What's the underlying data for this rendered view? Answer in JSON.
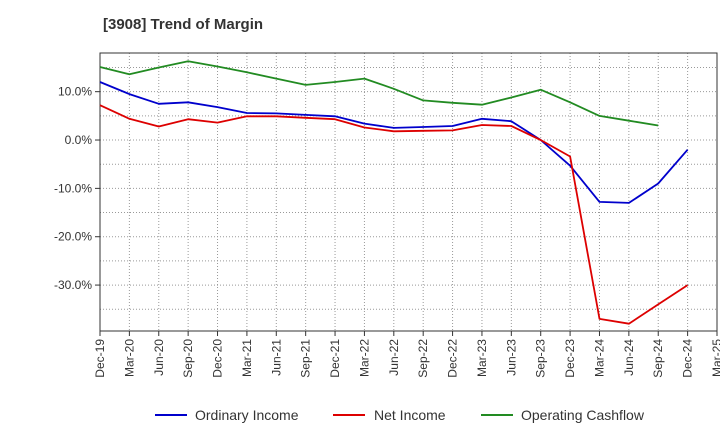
{
  "chart_data": {
    "type": "line",
    "title": "[3908]  Trend of Margin",
    "x": [
      "Dec-19",
      "Mar-20",
      "Jun-20",
      "Sep-20",
      "Dec-20",
      "Mar-21",
      "Jun-21",
      "Sep-21",
      "Dec-21",
      "Mar-22",
      "Jun-22",
      "Sep-22",
      "Dec-22",
      "Mar-23",
      "Jun-23",
      "Sep-23",
      "Dec-23",
      "Mar-24",
      "Jun-24",
      "Sep-24",
      "Dec-24",
      "Mar-25"
    ],
    "y_ticks": [
      "10.0%",
      "0.0%",
      "-10.0%",
      "-20.0%",
      "-30.0%"
    ],
    "y_tick_values": [
      10,
      0,
      -10,
      -20,
      -30
    ],
    "ylim": [
      -39.5,
      18
    ],
    "grid": true,
    "legend_position": "bottom",
    "series": [
      {
        "name": "Ordinary Income",
        "color": "#0000cc",
        "values": [
          12.0,
          9.5,
          7.5,
          7.8,
          6.8,
          5.6,
          5.5,
          5.2,
          4.9,
          3.4,
          2.5,
          2.7,
          2.9,
          4.4,
          3.9,
          0.0,
          -5.3,
          -12.8,
          -13.0,
          -9.0,
          -2.0,
          null
        ]
      },
      {
        "name": "Net Income",
        "color": "#dd0000",
        "values": [
          7.2,
          4.4,
          2.8,
          4.3,
          3.6,
          4.9,
          4.9,
          4.6,
          4.3,
          2.6,
          1.8,
          1.9,
          2.0,
          3.1,
          2.9,
          0.0,
          -3.4,
          -37.0,
          -38.0,
          -34.0,
          -30.0,
          null
        ]
      },
      {
        "name": "Operating Cashflow",
        "color": "#228b22",
        "values": [
          15.1,
          13.6,
          15.0,
          16.3,
          15.2,
          14.0,
          12.7,
          11.4,
          12.0,
          12.7,
          10.6,
          8.2,
          7.7,
          7.3,
          8.8,
          10.4,
          7.8,
          5.0,
          4.0,
          3.0,
          null,
          null
        ]
      }
    ]
  }
}
